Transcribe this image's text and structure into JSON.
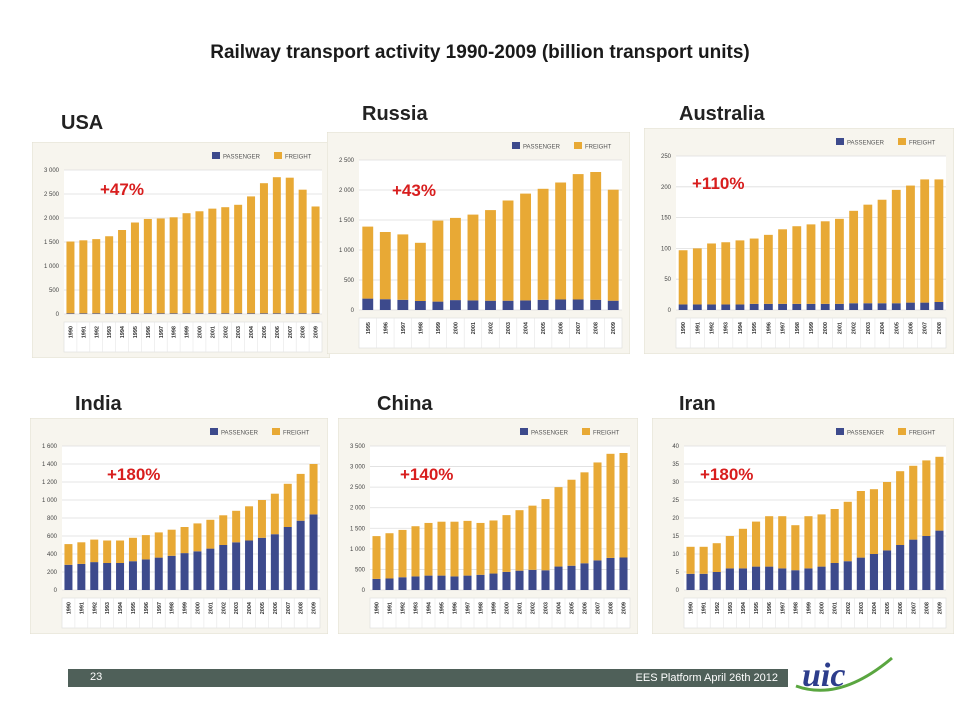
{
  "slide": {
    "title": "Railway transport activity 1990-2009 (billion transport units)",
    "page_number": "23",
    "footer_text": "EES Platform April 26th 2012",
    "logo_text": "uic"
  },
  "colors": {
    "passenger": "#3d4a8c",
    "freight": "#e8a935",
    "growth": "#d81e1e",
    "footer": "#4f6059",
    "logo_green": "#5aa640",
    "logo_blue": "#2d3d8c"
  },
  "legend": {
    "passenger": "PASSENGER",
    "freight": "FREIGHT"
  },
  "chart_data": [
    {
      "id": "usa",
      "type": "bar",
      "stacked": true,
      "country": "USA",
      "growth": "+47%",
      "categories": [
        "1990",
        "1991",
        "1992",
        "1993",
        "1994",
        "1995",
        "1996",
        "1997",
        "1998",
        "1999",
        "2000",
        "2001",
        "2002",
        "2003",
        "2004",
        "2005",
        "2006",
        "2007",
        "2008",
        "2009"
      ],
      "series": [
        {
          "name": "PASSENGER",
          "values": [
            14,
            14,
            14,
            14,
            14,
            14,
            14,
            14,
            14,
            14,
            14,
            14,
            14,
            14,
            14,
            14,
            14,
            14,
            14,
            14
          ]
        },
        {
          "name": "FREIGHT",
          "values": [
            1496,
            1521,
            1546,
            1606,
            1736,
            1892,
            1966,
            1976,
            2001,
            2086,
            2126,
            2181,
            2211,
            2261,
            2436,
            2711,
            2836,
            2826,
            2576,
            2226
          ]
        }
      ],
      "ylim": [
        0,
        3000
      ],
      "yticks": [
        0,
        500,
        1000,
        1500,
        2000,
        2500,
        3000
      ],
      "ytick_labels": [
        "0",
        "500",
        "1 000",
        "1 500",
        "2 000",
        "2 500",
        "3 000"
      ]
    },
    {
      "id": "russia",
      "type": "bar",
      "stacked": true,
      "country": "Russia",
      "growth": "+43%",
      "categories": [
        "1995",
        "1996",
        "1997",
        "1998",
        "1999",
        "2000",
        "2001",
        "2002",
        "2003",
        "2004",
        "2005",
        "2006",
        "2007",
        "2008",
        "2009"
      ],
      "series": [
        {
          "name": "PASSENGER",
          "values": [
            190,
            180,
            170,
            150,
            140,
            165,
            160,
            155,
            155,
            160,
            170,
            175,
            175,
            170,
            155
          ]
        },
        {
          "name": "FREIGHT",
          "values": [
            1200,
            1120,
            1090,
            970,
            1350,
            1370,
            1430,
            1510,
            1670,
            1780,
            1850,
            1950,
            2090,
            2130,
            1850
          ]
        }
      ],
      "ylim": [
        0,
        2500
      ],
      "yticks": [
        0,
        500,
        1000,
        1500,
        2000,
        2500
      ],
      "ytick_labels": [
        "0",
        "500",
        "1 000",
        "1 500",
        "2 000",
        "2 500"
      ]
    },
    {
      "id": "australia",
      "type": "bar",
      "stacked": true,
      "country": "Australia",
      "growth": "+110%",
      "categories": [
        "1990",
        "1991",
        "1992",
        "1993",
        "1994",
        "1995",
        "1996",
        "1997",
        "1998",
        "1999",
        "2000",
        "2001",
        "2002",
        "2003",
        "2004",
        "2005",
        "2006",
        "2007",
        "2008"
      ],
      "series": [
        {
          "name": "PASSENGER",
          "values": [
            9,
            9,
            9,
            9,
            9,
            10,
            10,
            10,
            10,
            10,
            10,
            10,
            11,
            11,
            11,
            11,
            12,
            12,
            13
          ]
        },
        {
          "name": "FREIGHT",
          "values": [
            88,
            91,
            99,
            101,
            104,
            106,
            112,
            121,
            126,
            129,
            134,
            138,
            150,
            160,
            168,
            184,
            190,
            200,
            199
          ]
        }
      ],
      "ylim": [
        0,
        250
      ],
      "yticks": [
        0,
        50,
        100,
        150,
        200,
        250
      ],
      "ytick_labels": [
        "0",
        "50",
        "100",
        "150",
        "200",
        "250"
      ]
    },
    {
      "id": "india",
      "type": "bar",
      "stacked": true,
      "country": "India",
      "growth": "+180%",
      "categories": [
        "1990",
        "1991",
        "1992",
        "1993",
        "1994",
        "1995",
        "1996",
        "1997",
        "1998",
        "1999",
        "2000",
        "2001",
        "2002",
        "2003",
        "2004",
        "2005",
        "2006",
        "2007",
        "2008",
        "2009"
      ],
      "series": [
        {
          "name": "PASSENGER",
          "values": [
            280,
            290,
            310,
            300,
            300,
            320,
            340,
            360,
            380,
            410,
            430,
            460,
            500,
            530,
            550,
            580,
            620,
            700,
            770,
            840
          ]
        },
        {
          "name": "FREIGHT",
          "values": [
            230,
            240,
            250,
            250,
            250,
            260,
            270,
            280,
            290,
            290,
            310,
            320,
            330,
            350,
            380,
            420,
            450,
            480,
            520,
            560
          ]
        }
      ],
      "ylim": [
        0,
        1600
      ],
      "yticks": [
        0,
        200,
        400,
        600,
        800,
        1000,
        1200,
        1400,
        1600
      ],
      "ytick_labels": [
        "0",
        "200",
        "400",
        "600",
        "800",
        "1 000",
        "1 200",
        "1 400",
        "1 600"
      ]
    },
    {
      "id": "china",
      "type": "bar",
      "stacked": true,
      "country": "China",
      "growth": "+140%",
      "categories": [
        "1990",
        "1991",
        "1992",
        "1993",
        "1994",
        "1995",
        "1996",
        "1997",
        "1998",
        "1999",
        "2000",
        "2001",
        "2002",
        "2003",
        "2004",
        "2005",
        "2006",
        "2007",
        "2008",
        "2009"
      ],
      "series": [
        {
          "name": "PASSENGER",
          "values": [
            270,
            280,
            310,
            330,
            350,
            350,
            330,
            350,
            370,
            400,
            440,
            470,
            490,
            480,
            570,
            590,
            650,
            720,
            780,
            790
          ]
        },
        {
          "name": "FREIGHT",
          "values": [
            1040,
            1100,
            1150,
            1220,
            1280,
            1310,
            1330,
            1330,
            1260,
            1290,
            1380,
            1470,
            1560,
            1730,
            1930,
            2090,
            2210,
            2380,
            2530,
            2540
          ]
        }
      ],
      "ylim": [
        0,
        3500
      ],
      "yticks": [
        0,
        500,
        1000,
        1500,
        2000,
        2500,
        3000,
        3500
      ],
      "ytick_labels": [
        "0",
        "500",
        "1 000",
        "1 500",
        "2 000",
        "2 500",
        "3 000",
        "3 500"
      ]
    },
    {
      "id": "iran",
      "type": "bar",
      "stacked": true,
      "country": "Iran",
      "growth": "+180%",
      "categories": [
        "1990",
        "1991",
        "1992",
        "1993",
        "1994",
        "1995",
        "1996",
        "1997",
        "1998",
        "1999",
        "2000",
        "2001",
        "2002",
        "2003",
        "2004",
        "2005",
        "2006",
        "2007",
        "2008",
        "2009"
      ],
      "series": [
        {
          "name": "PASSENGER",
          "values": [
            4.5,
            4.5,
            5,
            6,
            6,
            6.5,
            6.5,
            6,
            5.5,
            6,
            6.5,
            7.5,
            8,
            9,
            10,
            11,
            12.5,
            14,
            15,
            16.5
          ]
        },
        {
          "name": "FREIGHT",
          "values": [
            7.5,
            7.5,
            8,
            9,
            11,
            12.5,
            14,
            14.5,
            12.5,
            14.5,
            14.5,
            15,
            16.5,
            18.5,
            18,
            19,
            20.5,
            20.5,
            21,
            20.5
          ]
        }
      ],
      "ylim": [
        0,
        40
      ],
      "yticks": [
        0,
        5,
        10,
        15,
        20,
        25,
        30,
        35,
        40
      ],
      "ytick_labels": [
        "0",
        "5",
        "10",
        "15",
        "20",
        "25",
        "30",
        "35",
        "40"
      ]
    }
  ]
}
